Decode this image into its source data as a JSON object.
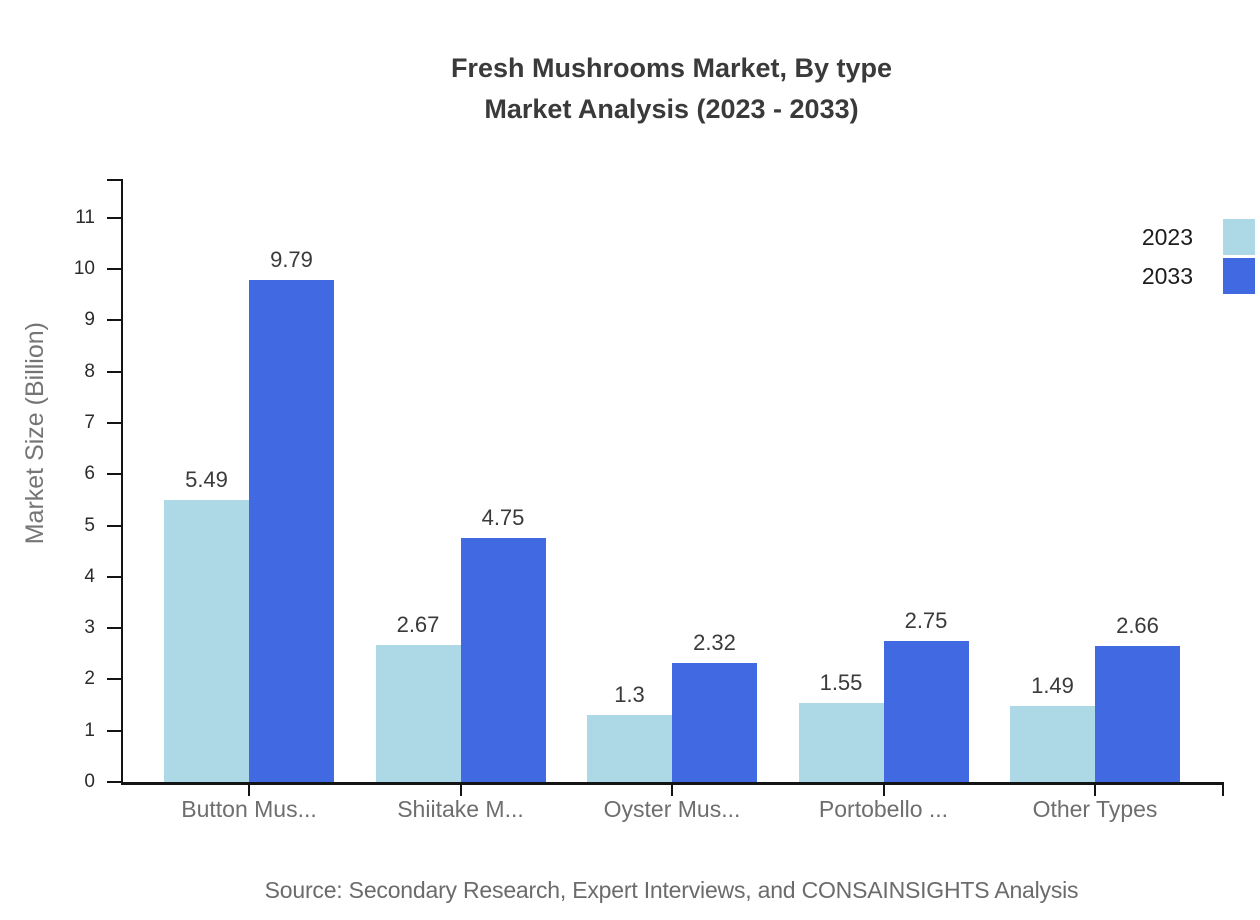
{
  "chart_data": {
    "type": "bar",
    "title_line1": "Fresh Mushrooms Market, By type",
    "title_line2": "Market Analysis (2023 - 2033)",
    "ylabel": "Market Size (Billion)",
    "xlabel": "",
    "categories": [
      "Button Mus...",
      "Shiitake M...",
      "Oyster Mus...",
      "Portobello ...",
      "Other Types"
    ],
    "series": [
      {
        "name": "2023",
        "color": "#ADD8E6",
        "values": [
          5.49,
          2.67,
          1.3,
          1.55,
          1.49
        ]
      },
      {
        "name": "2033",
        "color": "#4169E1",
        "values": [
          9.79,
          4.75,
          2.32,
          2.75,
          2.66
        ]
      }
    ],
    "y_ticks": [
      0,
      1,
      2,
      3,
      4,
      5,
      6,
      7,
      8,
      9,
      10,
      11
    ],
    "ylim": [
      0,
      11.72
    ],
    "grid": false,
    "legend_position": "top-right",
    "value_labels_shown": true,
    "source_note": "Source: Secondary Research, Expert Interviews, and CONSAINSIGHTS Analysis",
    "colors": {
      "axis": "#141414",
      "title_text": "#3a3a3a",
      "category_text": "#6e6e6e",
      "value_text": "#3a3a3a",
      "tick_text": "#2b2b2b",
      "source_text": "#6b6b6b",
      "background": "#ffffff"
    }
  }
}
